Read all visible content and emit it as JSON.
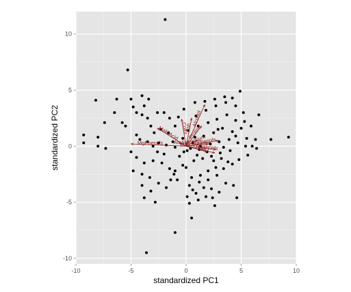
{
  "chart_data": {
    "type": "scatter",
    "title": "",
    "xlabel": "standardized PC1",
    "ylabel": "standardized PC2",
    "xlim": [
      -10,
      10
    ],
    "ylim": [
      -10.5,
      12
    ],
    "x_ticks": [
      -10,
      -5,
      0,
      5,
      10
    ],
    "y_ticks": [
      -10,
      -5,
      0,
      5,
      10
    ],
    "x_tick_labels": [
      "-10",
      "-5",
      "0",
      "5",
      "10"
    ],
    "y_tick_labels": [
      "-10",
      "-5",
      "0",
      "5",
      "10"
    ],
    "grid": true,
    "point_color": "#000000",
    "arrow_color": "#8b1a1a",
    "panel_color": "#e5e5e5",
    "points": [
      [
        -1.9,
        11.3
      ],
      [
        -5.3,
        6.8
      ],
      [
        -8.2,
        4.1
      ],
      [
        -6.3,
        4.2
      ],
      [
        -4.0,
        4.5
      ],
      [
        -5.0,
        4.2
      ],
      [
        -4.8,
        3.5
      ],
      [
        -3.8,
        3.6
      ],
      [
        -4.5,
        3.0
      ],
      [
        -6.5,
        3.0
      ],
      [
        -7.4,
        2.1
      ],
      [
        -9.3,
        1.0
      ],
      [
        -8.0,
        0.8
      ],
      [
        -9.3,
        0.3
      ],
      [
        -8.0,
        0.0
      ],
      [
        -7.3,
        -0.2
      ],
      [
        -5.8,
        2.1
      ],
      [
        -5.5,
        1.8
      ],
      [
        -4.0,
        2.8
      ],
      [
        -3.5,
        2.5
      ],
      [
        -2.6,
        3.0
      ],
      [
        -2.0,
        3.0
      ],
      [
        -1.5,
        2.5
      ],
      [
        -3.2,
        1.8
      ],
      [
        -2.9,
        1.2
      ],
      [
        -2.3,
        1.5
      ],
      [
        -1.6,
        1.2
      ],
      [
        -1.0,
        1.8
      ],
      [
        -4.5,
        1.0
      ],
      [
        -4.2,
        0.6
      ],
      [
        -3.5,
        0.4
      ],
      [
        -3.0,
        0.0
      ],
      [
        -2.5,
        0.3
      ],
      [
        -1.8,
        0.1
      ],
      [
        -1.0,
        -0.1
      ],
      [
        -5.0,
        -0.5
      ],
      [
        -4.5,
        -1.0
      ],
      [
        -3.8,
        -1.5
      ],
      [
        -3.0,
        -1.3
      ],
      [
        -2.2,
        -1.5
      ],
      [
        -1.5,
        -2.0
      ],
      [
        -1.1,
        -2.5
      ],
      [
        -4.8,
        -2.2
      ],
      [
        -4.0,
        -2.5
      ],
      [
        -3.3,
        -2.8
      ],
      [
        -2.5,
        -3.3
      ],
      [
        -1.8,
        -3.7
      ],
      [
        -1.0,
        -2.2
      ],
      [
        -4.0,
        -3.5
      ],
      [
        -3.2,
        -4.0
      ],
      [
        -3.8,
        -4.6
      ],
      [
        -2.8,
        -5.0
      ],
      [
        -3.6,
        -9.5
      ],
      [
        -1.0,
        -7.7
      ],
      [
        0.5,
        -6.4
      ],
      [
        0.3,
        -5.1
      ],
      [
        0.1,
        -4.5
      ],
      [
        0.9,
        -4.2
      ],
      [
        1.8,
        -4.5
      ],
      [
        2.4,
        -4.6
      ],
      [
        2.6,
        -5.3
      ],
      [
        3.0,
        -4.1
      ],
      [
        3.6,
        -3.3
      ],
      [
        4.3,
        -3.5
      ],
      [
        4.6,
        -4.6
      ],
      [
        0.3,
        -3.5
      ],
      [
        1.2,
        -3.2
      ],
      [
        2.0,
        -3.0
      ],
      [
        2.8,
        -2.6
      ],
      [
        0.5,
        -2.8
      ],
      [
        1.3,
        -2.6
      ],
      [
        2.0,
        -2.2
      ],
      [
        2.7,
        -1.9
      ],
      [
        3.4,
        -2.0
      ],
      [
        4.2,
        -1.6
      ],
      [
        4.8,
        -1.2
      ],
      [
        5.6,
        -0.8
      ],
      [
        0.0,
        -1.9
      ],
      [
        -0.3,
        -1.7
      ],
      [
        0.7,
        -1.3
      ],
      [
        1.5,
        -1.1
      ],
      [
        2.3,
        -0.9
      ],
      [
        3.1,
        -0.6
      ],
      [
        4.0,
        -0.4
      ],
      [
        1.0,
        -0.8
      ],
      [
        -0.2,
        -0.5
      ],
      [
        0.4,
        -0.2
      ],
      [
        1.3,
        0.0
      ],
      [
        2.2,
        0.2
      ],
      [
        3.0,
        0.4
      ],
      [
        3.9,
        0.6
      ],
      [
        4.7,
        0.3
      ],
      [
        5.5,
        0.7
      ],
      [
        6.0,
        0.0
      ],
      [
        6.3,
        0.6
      ],
      [
        5.9,
        1.8
      ],
      [
        6.6,
        2.8
      ],
      [
        7.7,
        0.6
      ],
      [
        9.3,
        0.8
      ],
      [
        5.2,
        3.0
      ],
      [
        0.8,
        0.8
      ],
      [
        1.6,
        0.9
      ],
      [
        2.5,
        1.2
      ],
      [
        3.3,
        1.6
      ],
      [
        4.2,
        1.3
      ],
      [
        5.0,
        1.6
      ],
      [
        1.1,
        1.8
      ],
      [
        2.0,
        2.1
      ],
      [
        2.8,
        2.4
      ],
      [
        3.7,
        2.8
      ],
      [
        4.5,
        2.3
      ],
      [
        0.9,
        2.7
      ],
      [
        1.8,
        3.2
      ],
      [
        2.7,
        3.6
      ],
      [
        3.6,
        3.9
      ],
      [
        4.5,
        3.6
      ],
      [
        4.9,
        4.9
      ],
      [
        4.2,
        4.3
      ],
      [
        3.5,
        4.4
      ],
      [
        2.6,
        4.2
      ],
      [
        1.7,
        4.0
      ],
      [
        -0.3,
        0.7
      ],
      [
        -0.6,
        -0.9
      ],
      [
        0.1,
        -0.4
      ],
      [
        0.6,
        0.3
      ],
      [
        1.2,
        -0.3
      ],
      [
        1.9,
        -0.5
      ],
      [
        2.5,
        -1.3
      ],
      [
        3.2,
        -1.1
      ],
      [
        3.8,
        -1.4
      ],
      [
        -1.2,
        0.4
      ],
      [
        -2.0,
        -0.7
      ],
      [
        -2.6,
        -0.5
      ],
      [
        -0.8,
        -3.0
      ],
      [
        -1.4,
        -3.0
      ],
      [
        0.6,
        -3.9
      ],
      [
        1.6,
        -3.7
      ],
      [
        2.3,
        -3.8
      ],
      [
        1.1,
        -4.8
      ],
      [
        6.4,
        -0.2
      ],
      [
        5.3,
        2.2
      ],
      [
        4.5,
        0.9
      ],
      [
        3.4,
        -0.1
      ],
      [
        2.9,
        1.5
      ],
      [
        0.2,
        1.4
      ],
      [
        -0.7,
        2.6
      ],
      [
        -0.2,
        3.3
      ],
      [
        0.8,
        3.9
      ],
      [
        -3.4,
        4.2
      ],
      [
        5.4,
        0.0
      ]
    ],
    "loadings": [
      {
        "name": "Alcohol",
        "dx": 1.7,
        "dy": 3.7,
        "angle": -72
      },
      {
        "name": "Ash",
        "dx": 0.5,
        "dy": 2.5,
        "angle": -80
      },
      {
        "name": "Color",
        "dx": -0.4,
        "dy": 2.4,
        "angle": 80
      },
      {
        "name": "MalicAcid",
        "dx": -2.6,
        "dy": 1.6,
        "angle": 32
      },
      {
        "name": "Proline",
        "dx": 1.4,
        "dy": 1.8,
        "angle": -52
      },
      {
        "name": "MgPhenols",
        "dx": -5.0,
        "dy": 0.2,
        "angle": 0
      },
      {
        "name": "Phenols",
        "dx": 2.9,
        "dy": 0.5,
        "angle": -10
      },
      {
        "name": "Flavanoids",
        "dx": 2.7,
        "dy": -0.3,
        "angle": 8
      },
      {
        "name": "OD",
        "dx": 2.6,
        "dy": -0.6,
        "angle": 12
      },
      {
        "name": "Hue",
        "dx": 1.9,
        "dy": -0.5,
        "angle": 15
      },
      {
        "name": "Magnesium",
        "dx": 1.0,
        "dy": 0.5,
        "angle": -20
      },
      {
        "name": "AlcAsh",
        "dx": -0.6,
        "dy": 0.3,
        "angle": 0
      },
      {
        "name": "Proanth",
        "dx": 2.0,
        "dy": 0.2,
        "angle": 0
      }
    ]
  }
}
